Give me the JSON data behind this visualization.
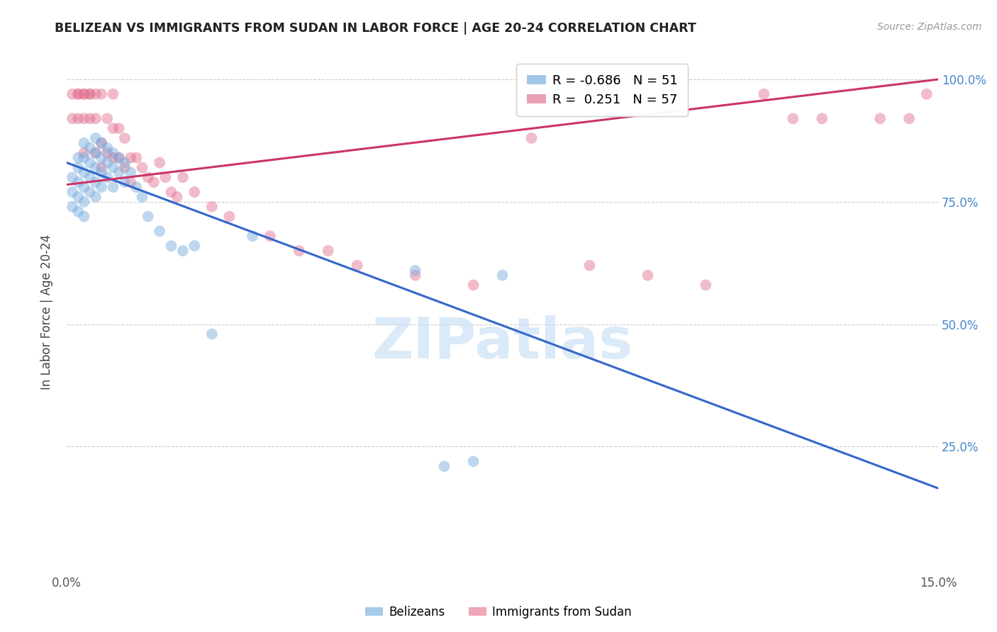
{
  "title": "BELIZEAN VS IMMIGRANTS FROM SUDAN IN LABOR FORCE | AGE 20-24 CORRELATION CHART",
  "source": "Source: ZipAtlas.com",
  "ylabel": "In Labor Force | Age 20-24",
  "xlim": [
    0.0,
    0.15
  ],
  "ylim": [
    0.0,
    1.05
  ],
  "blue_R": -0.686,
  "blue_N": 51,
  "pink_R": 0.251,
  "pink_N": 57,
  "blue_color": "#6fa8dc",
  "pink_color": "#e06c8a",
  "blue_line_color": "#3366cc",
  "pink_line_color": "#cc3366",
  "watermark_text": "ZIPatlas",
  "blue_scatter_x": [
    0.001,
    0.001,
    0.001,
    0.002,
    0.002,
    0.002,
    0.002,
    0.002,
    0.003,
    0.003,
    0.003,
    0.003,
    0.003,
    0.003,
    0.004,
    0.004,
    0.004,
    0.004,
    0.005,
    0.005,
    0.005,
    0.005,
    0.005,
    0.006,
    0.006,
    0.006,
    0.006,
    0.007,
    0.007,
    0.007,
    0.008,
    0.008,
    0.008,
    0.009,
    0.009,
    0.01,
    0.01,
    0.011,
    0.012,
    0.013,
    0.014,
    0.016,
    0.018,
    0.02,
    0.022,
    0.025,
    0.032,
    0.06,
    0.065,
    0.07,
    0.075
  ],
  "blue_scatter_y": [
    0.8,
    0.77,
    0.74,
    0.84,
    0.82,
    0.79,
    0.76,
    0.73,
    0.87,
    0.84,
    0.81,
    0.78,
    0.75,
    0.72,
    0.86,
    0.83,
    0.8,
    0.77,
    0.88,
    0.85,
    0.82,
    0.79,
    0.76,
    0.87,
    0.84,
    0.81,
    0.78,
    0.86,
    0.83,
    0.8,
    0.85,
    0.82,
    0.78,
    0.84,
    0.81,
    0.83,
    0.79,
    0.81,
    0.78,
    0.76,
    0.72,
    0.69,
    0.66,
    0.65,
    0.66,
    0.48,
    0.68,
    0.61,
    0.21,
    0.22,
    0.6
  ],
  "pink_scatter_x": [
    0.001,
    0.001,
    0.002,
    0.002,
    0.002,
    0.003,
    0.003,
    0.003,
    0.003,
    0.004,
    0.004,
    0.004,
    0.005,
    0.005,
    0.005,
    0.006,
    0.006,
    0.006,
    0.007,
    0.007,
    0.008,
    0.008,
    0.008,
    0.009,
    0.009,
    0.01,
    0.01,
    0.011,
    0.011,
    0.012,
    0.013,
    0.014,
    0.015,
    0.016,
    0.017,
    0.018,
    0.019,
    0.02,
    0.022,
    0.025,
    0.028,
    0.035,
    0.04,
    0.045,
    0.05,
    0.06,
    0.07,
    0.08,
    0.09,
    0.1,
    0.11,
    0.12,
    0.125,
    0.13,
    0.14,
    0.145,
    0.148
  ],
  "pink_scatter_y": [
    0.97,
    0.92,
    0.97,
    0.97,
    0.92,
    0.97,
    0.97,
    0.92,
    0.85,
    0.97,
    0.97,
    0.92,
    0.97,
    0.92,
    0.85,
    0.97,
    0.87,
    0.82,
    0.92,
    0.85,
    0.97,
    0.9,
    0.84,
    0.9,
    0.84,
    0.88,
    0.82,
    0.84,
    0.79,
    0.84,
    0.82,
    0.8,
    0.79,
    0.83,
    0.8,
    0.77,
    0.76,
    0.8,
    0.77,
    0.74,
    0.72,
    0.68,
    0.65,
    0.65,
    0.62,
    0.6,
    0.58,
    0.88,
    0.62,
    0.6,
    0.58,
    0.97,
    0.92,
    0.92,
    0.92,
    0.92,
    0.97
  ],
  "blue_trendline_x": [
    0.0,
    0.15
  ],
  "blue_trendline_y": [
    0.83,
    0.165
  ],
  "pink_trendline_x": [
    0.0,
    0.15
  ],
  "pink_trendline_y": [
    0.785,
    1.0
  ]
}
